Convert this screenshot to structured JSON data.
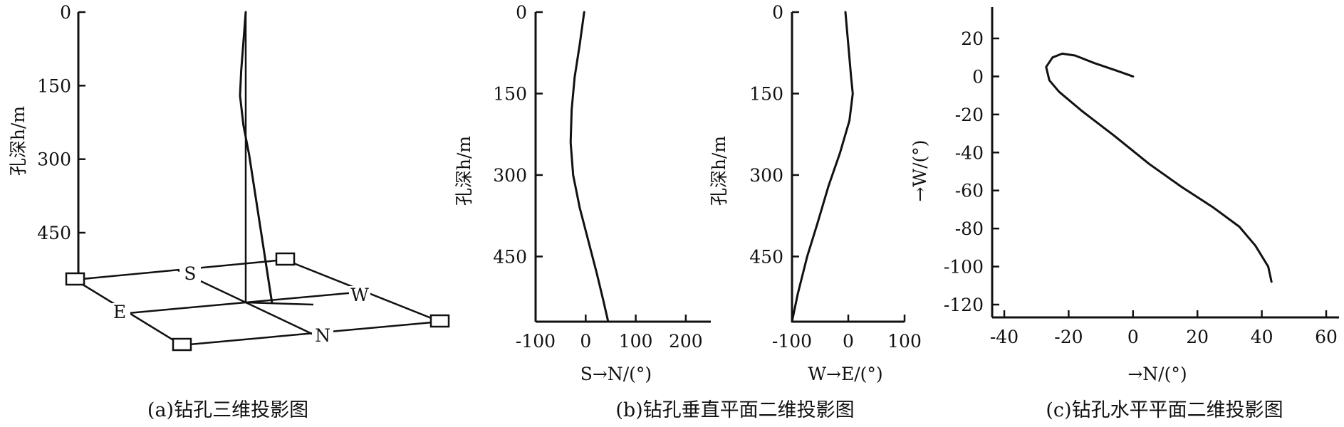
{
  "captions": {
    "a": "(a)钻孔三维投影图",
    "b": "(b)钻孔垂直平面二维投影图",
    "c": "(c)钻孔水平平面二维投影图"
  },
  "labels": {
    "depth": "孔深h/m",
    "sn": "S→N/(°)",
    "we": "W→E/(°)",
    "n": "→N/(°)",
    "w": "→W/(°)",
    "compass_s": "S",
    "compass_w": "W",
    "compass_e": "E",
    "compass_n": "N"
  },
  "chart_data": [
    {
      "id": "a",
      "type": "line",
      "title": "(a)钻孔三维投影图",
      "ylabel": "孔深h/m",
      "yticks": [
        0,
        150,
        300,
        450
      ],
      "ylim": [
        0,
        550
      ],
      "compass_labels": [
        "S",
        "W",
        "E",
        "N"
      ],
      "series": [
        {
          "depth": [
            0,
            60,
            120,
            170,
            230,
            290,
            350,
            410,
            470,
            530,
            590
          ],
          "offset": [
            0,
            -4,
            -8,
            -10,
            -4,
            6,
            14,
            22,
            30,
            38,
            46
          ]
        }
      ]
    },
    {
      "id": "b1",
      "type": "line",
      "ylabel": "孔深h/m",
      "xlabel": "S→N/(°)",
      "xticks": [
        -100,
        0,
        100,
        200
      ],
      "xlim": [
        -100,
        250
      ],
      "yticks": [
        0,
        150,
        300,
        450
      ],
      "ylim": [
        0,
        570
      ],
      "series": [
        {
          "x": [
            -3,
            -12,
            -22,
            -28,
            -30,
            -25,
            -12,
            5,
            22,
            35,
            45
          ],
          "y": [
            0,
            60,
            120,
            180,
            240,
            300,
            360,
            420,
            480,
            530,
            570
          ]
        }
      ]
    },
    {
      "id": "b2",
      "type": "line",
      "ylabel": "孔深h/m",
      "xlabel": "W→E/(°)",
      "xticks": [
        -100,
        0,
        100
      ],
      "xlim": [
        -100,
        100
      ],
      "yticks": [
        0,
        150,
        300,
        450
      ],
      "ylim": [
        0,
        570
      ],
      "series": [
        {
          "x": [
            -5,
            0,
            5,
            8,
            2,
            -15,
            -35,
            -55,
            -73,
            -90,
            -100
          ],
          "y": [
            0,
            60,
            120,
            150,
            200,
            260,
            320,
            390,
            450,
            520,
            570
          ]
        }
      ]
    },
    {
      "id": "c",
      "type": "line",
      "xlabel": "→N/(°)",
      "ylabel": "→W/(°)",
      "xticks": [
        -40,
        -20,
        0,
        20,
        40,
        60
      ],
      "xlim": [
        -45,
        67
      ],
      "yticks": [
        20,
        0,
        -20,
        -40,
        -60,
        -80,
        -100,
        -120
      ],
      "ylim": [
        -130,
        37
      ],
      "series": [
        {
          "x": [
            0,
            -5,
            -12,
            -18,
            -22,
            -25,
            -27,
            -26,
            -23,
            -16,
            -6,
            5,
            15,
            25,
            33,
            38,
            42,
            43
          ],
          "y": [
            0,
            3,
            7,
            11,
            12,
            10,
            5,
            -2,
            -8,
            -18,
            -31,
            -46,
            -58,
            -69,
            -79,
            -89,
            -100,
            -108
          ]
        }
      ]
    }
  ]
}
